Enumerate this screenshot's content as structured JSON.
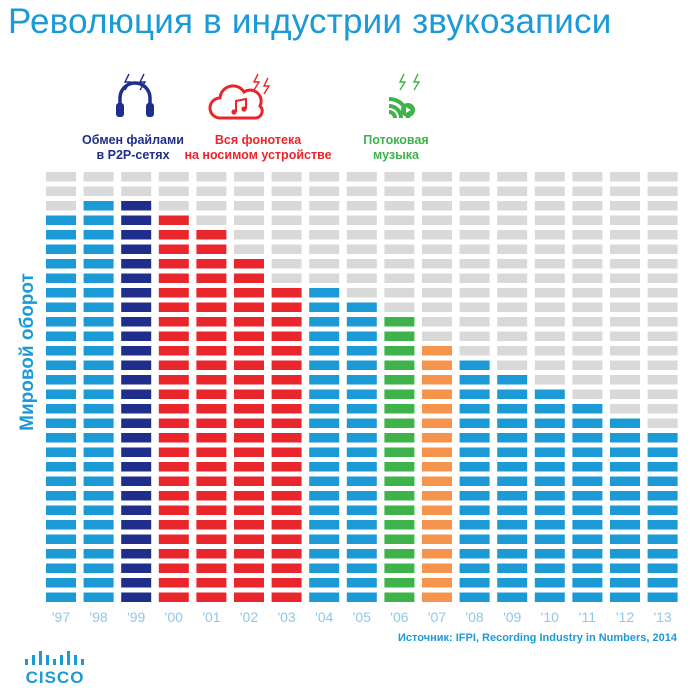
{
  "title": "Революция в индустрии звукозаписи",
  "colors": {
    "title": "#1b9ad6",
    "bar_blue": "#1b9ad6",
    "bar_navy": "#1e2e8a",
    "bar_red": "#e8262b",
    "bar_green": "#3db34a",
    "bar_orange": "#f4944d",
    "bar_empty": "#d9d9d9",
    "tick_label": "#8fc8e8"
  },
  "annotations": [
    {
      "id": "p2p",
      "line1": "Обмен файлами",
      "line2": "в P2P-сетях",
      "icon": "headphones-icon",
      "color": "#1e2e8a"
    },
    {
      "id": "device",
      "line1": "Вся фонотека",
      "line2": "на носимом устройстве",
      "icon": "music-cloud-icon",
      "color": "#e8262b"
    },
    {
      "id": "stream",
      "line1": "Потоковая",
      "line2": "музыка",
      "icon": "streaming-signal-icon",
      "color": "#3db34a"
    }
  ],
  "source": "Источник: IFPI, Recording Industry in Numbers, 2014",
  "logo": {
    "text": "CISCO"
  },
  "chart_data": {
    "type": "bar",
    "title": "Революция в индустрии звукозаписи",
    "ylabel": "Мировой оборот",
    "xlabel": "",
    "categories": [
      "'97",
      "'98",
      "'99",
      "'00",
      "'01",
      "'02",
      "'03",
      "'04",
      "'05",
      "'06",
      "'07",
      "'08",
      "'09",
      "'10",
      "'11",
      "'12",
      "'13"
    ],
    "values": [
      27,
      28,
      28,
      27,
      26,
      24,
      22,
      22,
      21,
      20,
      18,
      17,
      16,
      15,
      14,
      13,
      12
    ],
    "value_unit": "filled segments out of 30",
    "ylim": [
      0,
      30
    ],
    "bar_colors": [
      "#1b9ad6",
      "#1b9ad6",
      "#1e2e8a",
      "#e8262b",
      "#e8262b",
      "#e8262b",
      "#e8262b",
      "#1b9ad6",
      "#1b9ad6",
      "#3db34a",
      "#f4944d",
      "#1b9ad6",
      "#1b9ad6",
      "#1b9ad6",
      "#1b9ad6",
      "#1b9ad6",
      "#1b9ad6"
    ],
    "grid": false,
    "legend": "none"
  }
}
